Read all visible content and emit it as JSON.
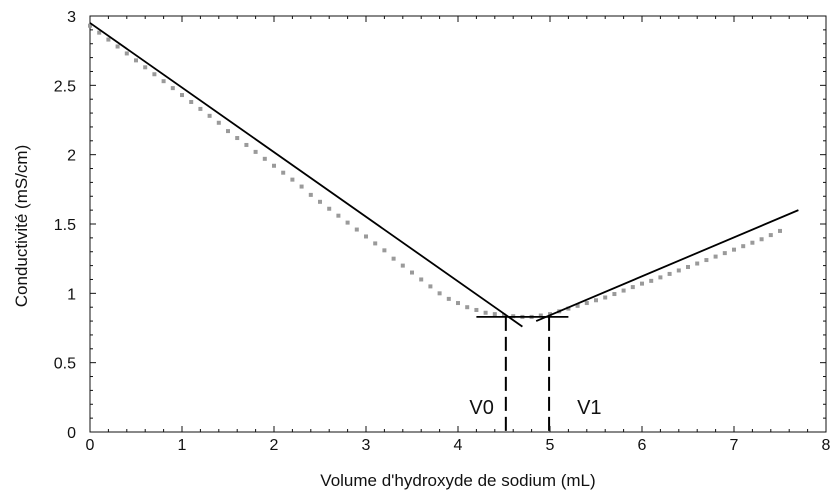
{
  "chart_data": {
    "type": "scatter",
    "title": "",
    "xlabel": "Volume d'hydroxyde de sodium (mL)",
    "ylabel": "Conductivité (mS/cm)",
    "xlim": [
      0,
      8
    ],
    "ylim": [
      0,
      3
    ],
    "xticks": [
      0,
      1,
      2,
      3,
      4,
      5,
      6,
      7,
      8
    ],
    "yticks": [
      0,
      0.5,
      1,
      1.5,
      2,
      2.5,
      3
    ],
    "xtick_labels": [
      "0",
      "1",
      "2",
      "3",
      "4",
      "5",
      "6",
      "7",
      "8"
    ],
    "ytick_labels": [
      "0",
      "0.5",
      "1",
      "1.5",
      "2",
      "2.5",
      "3"
    ],
    "grid": false,
    "series": [
      {
        "kind": "points",
        "x": [
          0,
          0.1,
          0.2,
          0.3,
          0.4,
          0.5,
          0.6,
          0.7,
          0.8,
          0.9,
          1.0,
          1.1,
          1.2,
          1.3,
          1.4,
          1.5,
          1.6,
          1.7,
          1.8,
          1.9,
          2.0,
          2.1,
          2.2,
          2.3,
          2.4,
          2.5,
          2.6,
          2.7,
          2.8,
          2.9,
          3.0,
          3.1,
          3.2,
          3.3,
          3.4,
          3.5,
          3.6,
          3.7,
          3.8,
          3.9,
          4.0,
          4.1,
          4.2,
          4.3,
          4.4,
          4.5,
          4.6,
          4.7,
          4.8,
          4.9,
          5.0,
          5.1,
          5.2,
          5.3,
          5.4,
          5.5,
          5.6,
          5.7,
          5.8,
          5.9,
          6.0,
          6.1,
          6.2,
          6.3,
          6.4,
          6.5,
          6.6,
          6.7,
          6.8,
          6.9,
          7.0,
          7.1,
          7.2,
          7.3,
          7.4,
          7.5
        ],
        "y": [
          2.93,
          2.88,
          2.83,
          2.78,
          2.73,
          2.68,
          2.63,
          2.58,
          2.53,
          2.48,
          2.43,
          2.38,
          2.33,
          2.28,
          2.23,
          2.17,
          2.12,
          2.07,
          2.02,
          1.97,
          1.92,
          1.87,
          1.82,
          1.77,
          1.71,
          1.66,
          1.61,
          1.56,
          1.51,
          1.46,
          1.41,
          1.36,
          1.31,
          1.25,
          1.2,
          1.15,
          1.1,
          1.05,
          1.0,
          0.96,
          0.93,
          0.9,
          0.88,
          0.86,
          0.85,
          0.84,
          0.835,
          0.83,
          0.83,
          0.84,
          0.85,
          0.87,
          0.89,
          0.91,
          0.93,
          0.95,
          0.97,
          0.995,
          1.02,
          1.045,
          1.07,
          1.09,
          1.115,
          1.14,
          1.165,
          1.19,
          1.215,
          1.24,
          1.265,
          1.29,
          1.315,
          1.34,
          1.365,
          1.39,
          1.42,
          1.45
        ]
      },
      {
        "kind": "line",
        "x": [
          0,
          4.7
        ],
        "y": [
          2.95,
          0.76
        ]
      },
      {
        "kind": "line",
        "x": [
          4.85,
          7.7
        ],
        "y": [
          0.8,
          1.6
        ]
      },
      {
        "kind": "line",
        "x": [
          4.2,
          5.2
        ],
        "y": [
          0.83,
          0.83
        ]
      }
    ],
    "annotations": [
      {
        "text": "V0",
        "x": 4.52
      },
      {
        "text": "V1",
        "x": 4.99
      }
    ]
  }
}
